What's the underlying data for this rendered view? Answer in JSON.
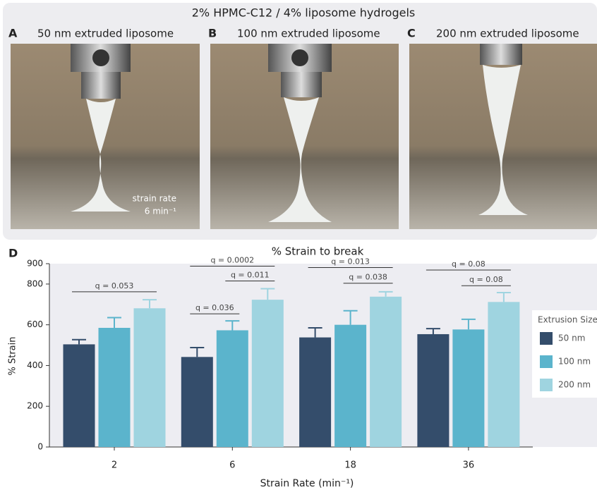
{
  "header": {
    "title": "2% HPMC-C12 / 4% liposome hydrogels"
  },
  "panels": [
    {
      "letter": "A",
      "caption": "50 nm extruded liposome"
    },
    {
      "letter": "B",
      "caption": "100 nm extruded liposome"
    },
    {
      "letter": "C",
      "caption": "200 nm extruded liposome"
    }
  ],
  "photo_note": {
    "line1": "strain rate",
    "line2": "6 min⁻¹"
  },
  "chart_panel_letter": "D",
  "chart_data": {
    "type": "bar",
    "title": "% Strain to break",
    "x_label": "Strain Rate (min⁻¹)",
    "y_label": "% Strain",
    "categories": [
      "2",
      "6",
      "18",
      "36"
    ],
    "series": [
      {
        "name": "50 nm",
        "color": "#344d6b",
        "values": [
          504,
          442,
          538,
          554
        ],
        "errors": [
          23,
          46,
          47,
          27
        ]
      },
      {
        "name": "100 nm",
        "color": "#5bb4cc",
        "values": [
          585,
          573,
          600,
          577
        ],
        "errors": [
          50,
          46,
          69,
          50
        ]
      },
      {
        "name": "200 nm",
        "color": "#9fd4e0",
        "values": [
          681,
          723,
          738,
          712
        ],
        "errors": [
          42,
          54,
          24,
          46
        ]
      }
    ],
    "ylim": [
      0,
      900
    ],
    "yticks": [
      0,
      200,
      400,
      600,
      800,
      900
    ],
    "legend_title": "Extrusion Size",
    "legend_position": "right",
    "annotations": [
      {
        "label": "q = 0.053",
        "category": 0,
        "from": 0,
        "to": 2,
        "y": 762
      },
      {
        "label": "q = 0.0002",
        "category": 1,
        "from": 0,
        "to": 2,
        "y": 888
      },
      {
        "label": "q = 0.011",
        "category": 1,
        "from": 1,
        "to": 2,
        "y": 815
      },
      {
        "label": "q = 0.036",
        "category": 1,
        "from": 0,
        "to": 1,
        "y": 654
      },
      {
        "label": "q = 0.013",
        "category": 2,
        "from": 0,
        "to": 2,
        "y": 881
      },
      {
        "label": "q = 0.038",
        "category": 2,
        "from": 1,
        "to": 2,
        "y": 804
      },
      {
        "label": "q = 0.08",
        "category": 3,
        "from": 0,
        "to": 2,
        "y": 869
      },
      {
        "label": "q = 0.08",
        "category": 3,
        "from": 1,
        "to": 2,
        "y": 792
      }
    ]
  }
}
